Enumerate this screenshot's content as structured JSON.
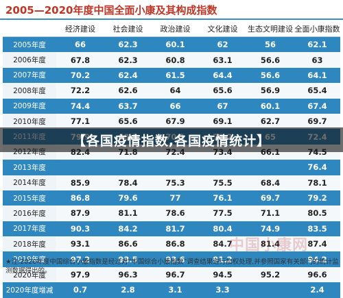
{
  "title": "2005—2020年度中国全面小康及其构成指数",
  "overlay_text": "【各国疫情指数,各国疫情统计】",
  "watermark": "中国小康网",
  "footnote": "★注:2020年度中国综合小康指数是经过对“中国综合小康指数”调查结果进行加权处理,并参照国家有关部门的统计监测数据得出的。",
  "colors": {
    "title": "#c33424",
    "band": "#2f87c0",
    "light_row": "#f4f8fb"
  },
  "chart_data": {
    "type": "table",
    "title": "2005—2020年度中国全面小康及其构成指数",
    "columns": [
      "",
      "经济建设",
      "社会建设",
      "政治建设",
      "文化建设",
      "生态文明建设",
      "全面小康指数"
    ],
    "rows": [
      [
        "2005年度",
        "66",
        "62.3",
        "60.1",
        "62",
        "56",
        "62.1"
      ],
      [
        "2006年度",
        "67.8",
        "62.3",
        "60.8",
        "63.1",
        "56.6",
        "63"
      ],
      [
        "2007年度",
        "70.2",
        "62.4",
        "61.5",
        "64.4",
        "56.6",
        "64.1"
      ],
      [
        "2008年度",
        "72.2",
        "62.6",
        "64",
        "65.6",
        "56.9",
        "65.4"
      ],
      [
        "2009年度",
        "74.4",
        "63.7",
        "66",
        "67",
        "60.1",
        "67.4"
      ],
      [
        "2010年度",
        "77.1",
        "65.6",
        "67.9",
        "69.1",
        "62.7",
        "69.7"
      ],
      [
        "2011年度",
        "79.9",
        "68.5",
        "70.1",
        "72.2",
        "65",
        "72.4"
      ],
      [
        "2012年度",
        "82.4",
        "71.8",
        "72.4",
        "73.4",
        "66.1",
        "74.5"
      ],
      [
        "2013年度",
        "",
        "",
        "",
        "",
        "",
        "76.4"
      ],
      [
        "2014年度",
        "85.9",
        "78.4",
        "75.3",
        "75.5",
        "68.4",
        "78.1"
      ],
      [
        "2015年度",
        "86.8",
        "79.6",
        "77",
        "76.1",
        "69.7",
        "79.2"
      ],
      [
        "2016年度",
        "87.9",
        "81.1",
        "78.6",
        "77.5",
        "71.1",
        "80.5"
      ],
      [
        "2017年度",
        "90.3",
        "84.2",
        "81.7",
        "80.4",
        "74.9",
        "83.5"
      ],
      [
        "2018年度",
        "93.1",
        "86.6",
        "86.8",
        "84.7",
        "81.4",
        "87.4"
      ],
      [
        "2019年度",
        "97.2",
        "93.5",
        "93.6",
        "91.2",
        "",
        "94.2"
      ],
      [
        "2020年度",
        "97.9",
        "96.3",
        "96.7",
        "94.5",
        "95.2",
        "96.6"
      ],
      [
        "2020年度增减",
        "0.7",
        "2.8",
        "3.1",
        "3.3",
        "",
        "2.4"
      ]
    ]
  }
}
